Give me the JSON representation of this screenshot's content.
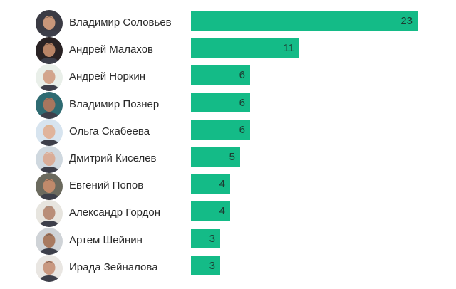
{
  "chart_data": {
    "type": "bar",
    "orientation": "horizontal",
    "title": "",
    "xlabel": "",
    "ylabel": "",
    "bar_color": "#14bb87",
    "grid": false,
    "legend": null,
    "categories": [
      "Владимир Соловьев",
      "Андрей Малахов",
      "Андрей Норкин",
      "Владимир Познер",
      "Ольга Скабеева",
      "Дмитрий Киселев",
      "Евгений Попов",
      "Александр Гордон",
      "Артем Шейнин",
      "Ирада Зейналова"
    ],
    "values": [
      23,
      11,
      6,
      6,
      6,
      5,
      4,
      4,
      3,
      3
    ],
    "xlim": [
      0,
      23
    ]
  },
  "rows": [
    {
      "name": "Владимир Соловьев",
      "value": "23",
      "avatar": "person-photo"
    },
    {
      "name": "Андрей Малахов",
      "value": "11",
      "avatar": "person-photo"
    },
    {
      "name": "Андрей Норкин",
      "value": "6",
      "avatar": "person-photo"
    },
    {
      "name": "Владимир Познер",
      "value": "6",
      "avatar": "person-photo"
    },
    {
      "name": "Ольга Скабеева",
      "value": "6",
      "avatar": "person-photo"
    },
    {
      "name": "Дмитрий Киселев",
      "value": "5",
      "avatar": "person-photo"
    },
    {
      "name": "Евгений Попов",
      "value": "4",
      "avatar": "person-photo"
    },
    {
      "name": "Александр Гордон",
      "value": "4",
      "avatar": "person-photo"
    },
    {
      "name": "Артем Шейнин",
      "value": "3",
      "avatar": "person-photo"
    },
    {
      "name": "Ирада Зейналова",
      "value": "3",
      "avatar": "person-photo"
    }
  ]
}
